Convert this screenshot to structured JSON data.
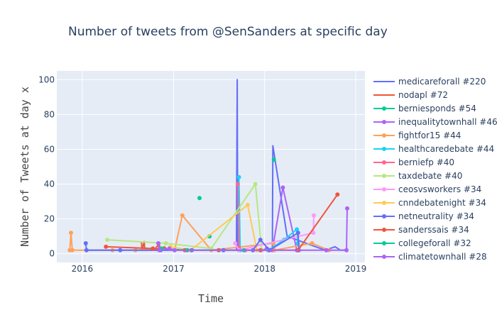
{
  "chart_data": {
    "type": "line",
    "title": "Number of tweets from @SenSanders at specific day",
    "xlabel": "Time",
    "ylabel": "Number of Tweets at day x",
    "x_ticks": [
      "2016",
      "2017",
      "2018",
      "2019"
    ],
    "y_ticks": [
      0,
      20,
      40,
      60,
      80,
      100
    ],
    "xlim": [
      "2015-09-21",
      "2019-02-07"
    ],
    "ylim": [
      -5,
      105
    ],
    "grid": true,
    "legend_position": "right",
    "plot_bg": "#E5ECF6",
    "series": [
      {
        "name": "medicareforall #220",
        "color": "#636EFA",
        "mode": "lines",
        "points": [
          [
            "2016-01-15",
            2
          ],
          [
            "2017-06-01",
            2
          ],
          [
            "2017-09-10",
            2
          ],
          [
            "2017-09-13",
            100
          ],
          [
            "2017-09-15",
            5
          ],
          [
            "2017-09-20",
            3
          ],
          [
            "2017-10-01",
            2
          ],
          [
            "2017-12-01",
            2
          ],
          [
            "2018-01-31",
            2
          ],
          [
            "2018-02-01",
            2
          ],
          [
            "2018-02-03",
            62
          ],
          [
            "2018-04-01",
            10
          ],
          [
            "2018-09-01",
            2
          ],
          [
            "2018-10-10",
            4
          ],
          [
            "2018-11-01",
            2
          ],
          [
            "2018-12-01",
            2
          ]
        ]
      },
      {
        "name": "nodapl #72",
        "color": "#EF553B",
        "mode": "lines",
        "points": [
          [
            "2016-08-25",
            7
          ],
          [
            "2016-08-28",
            2
          ],
          [
            "2016-09-05",
            7
          ],
          [
            "2016-09-08",
            2
          ],
          [
            "2016-10-20",
            3
          ],
          [
            "2016-11-05",
            6
          ],
          [
            "2016-11-08",
            2
          ],
          [
            "2016-11-25",
            4
          ],
          [
            "2016-12-10",
            2
          ]
        ]
      },
      {
        "name": "berniesponds #54",
        "color": "#00CC96",
        "mode": "markers",
        "points": [
          [
            "2017-04-15",
            32
          ],
          [
            "2017-05-25",
            10
          ],
          [
            "2018-02-07",
            54
          ]
        ]
      },
      {
        "name": "inequalitytownhall #46",
        "color": "#AB63FA",
        "mode": "lines+markers",
        "points": [
          [
            "2017-12-20",
            2
          ],
          [
            "2018-01-10",
            3
          ],
          [
            "2018-02-01",
            2
          ],
          [
            "2018-03-15",
            38
          ],
          [
            "2018-05-10",
            2
          ]
        ]
      },
      {
        "name": "fightfor15 #44",
        "color": "#FFA15A",
        "mode": "lines+markers",
        "points": [
          [
            "2015-11-12",
            2
          ],
          [
            "2015-11-17",
            12
          ],
          [
            "2015-11-22",
            2
          ],
          [
            "2016-05-01",
            2
          ],
          [
            "2016-08-01",
            2
          ],
          [
            "2016-11-01",
            3
          ],
          [
            "2017-01-05",
            2
          ],
          [
            "2017-02-05",
            22
          ],
          [
            "2017-06-01",
            2
          ],
          [
            "2018-02-05",
            6
          ],
          [
            "2018-02-08",
            2
          ],
          [
            "2018-07-10",
            6
          ],
          [
            "2018-09-15",
            2
          ]
        ]
      },
      {
        "name": "healthcaredebate #44",
        "color": "#19D3F3",
        "mode": "lines+markers",
        "points": [
          [
            "2017-09-20",
            44
          ],
          [
            "2017-09-25",
            2
          ],
          [
            "2018-01-15",
            2
          ],
          [
            "2018-03-20",
            8
          ],
          [
            "2018-05-10",
            14
          ],
          [
            "2018-05-14",
            6
          ]
        ]
      },
      {
        "name": "berniefp #40",
        "color": "#FF6692",
        "mode": "lines+markers",
        "points": [
          [
            "2017-09-15",
            40
          ],
          [
            "2017-09-20",
            3
          ],
          [
            "2017-10-15",
            2
          ]
        ]
      },
      {
        "name": "taxdebate #40",
        "color": "#B6E880",
        "mode": "lines+markers",
        "points": [
          [
            "2016-04-10",
            8
          ],
          [
            "2016-12-01",
            6
          ],
          [
            "2017-06-01",
            3
          ],
          [
            "2017-11-25",
            40
          ],
          [
            "2017-12-20",
            2
          ]
        ]
      },
      {
        "name": "ceosvsworkers #34",
        "color": "#FF97FF",
        "mode": "lines+markers",
        "points": [
          [
            "2017-09-05",
            6
          ],
          [
            "2017-09-20",
            2
          ],
          [
            "2018-07-15",
            12
          ],
          [
            "2018-07-17",
            22
          ]
        ]
      },
      {
        "name": "cnndebatenight #34",
        "color": "#FECB52",
        "mode": "lines+markers",
        "points": [
          [
            "2016-12-20",
            4
          ],
          [
            "2017-03-10",
            2
          ],
          [
            "2017-10-25",
            28
          ],
          [
            "2017-12-01",
            2
          ],
          [
            "2018-01-20",
            2
          ]
        ]
      },
      {
        "name": "netneutrality #34",
        "color": "#636EFA",
        "mode": "lines+markers",
        "points": [
          [
            "2016-01-15",
            6
          ],
          [
            "2016-01-18",
            2
          ],
          [
            "2016-06-01",
            2
          ],
          [
            "2016-11-10",
            2
          ],
          [
            "2017-03-15",
            2
          ],
          [
            "2017-07-20",
            2
          ],
          [
            "2017-11-15",
            2
          ],
          [
            "2017-12-15",
            8
          ],
          [
            "2018-01-20",
            2
          ],
          [
            "2018-05-15",
            12
          ],
          [
            "2018-05-18",
            2
          ]
        ]
      },
      {
        "name": "sanderssais #34",
        "color": "#EF553B",
        "mode": "lines+markers",
        "points": [
          [
            "2016-04-05",
            4
          ],
          [
            "2016-10-10",
            3
          ],
          [
            "2017-02-15",
            2
          ],
          [
            "2017-07-01",
            2
          ],
          [
            "2017-12-15",
            2
          ],
          [
            "2018-05-15",
            2
          ],
          [
            "2018-10-20",
            34
          ]
        ]
      },
      {
        "name": "collegeforall #32",
        "color": "#00CC96",
        "mode": "lines+markers",
        "points": [
          [
            "2016-11-15",
            3
          ],
          [
            "2017-02-25",
            2
          ],
          [
            "2017-10-10",
            2
          ]
        ]
      },
      {
        "name": "climatetownhall #28",
        "color": "#AB63FA",
        "mode": "lines+markers",
        "points": [
          [
            "2016-11-01",
            6
          ],
          [
            "2016-11-05",
            2
          ],
          [
            "2016-12-15",
            3
          ],
          [
            "2017-01-05",
            2
          ],
          [
            "2018-09-05",
            2
          ],
          [
            "2018-11-25",
            2
          ],
          [
            "2018-11-28",
            26
          ]
        ]
      }
    ]
  }
}
